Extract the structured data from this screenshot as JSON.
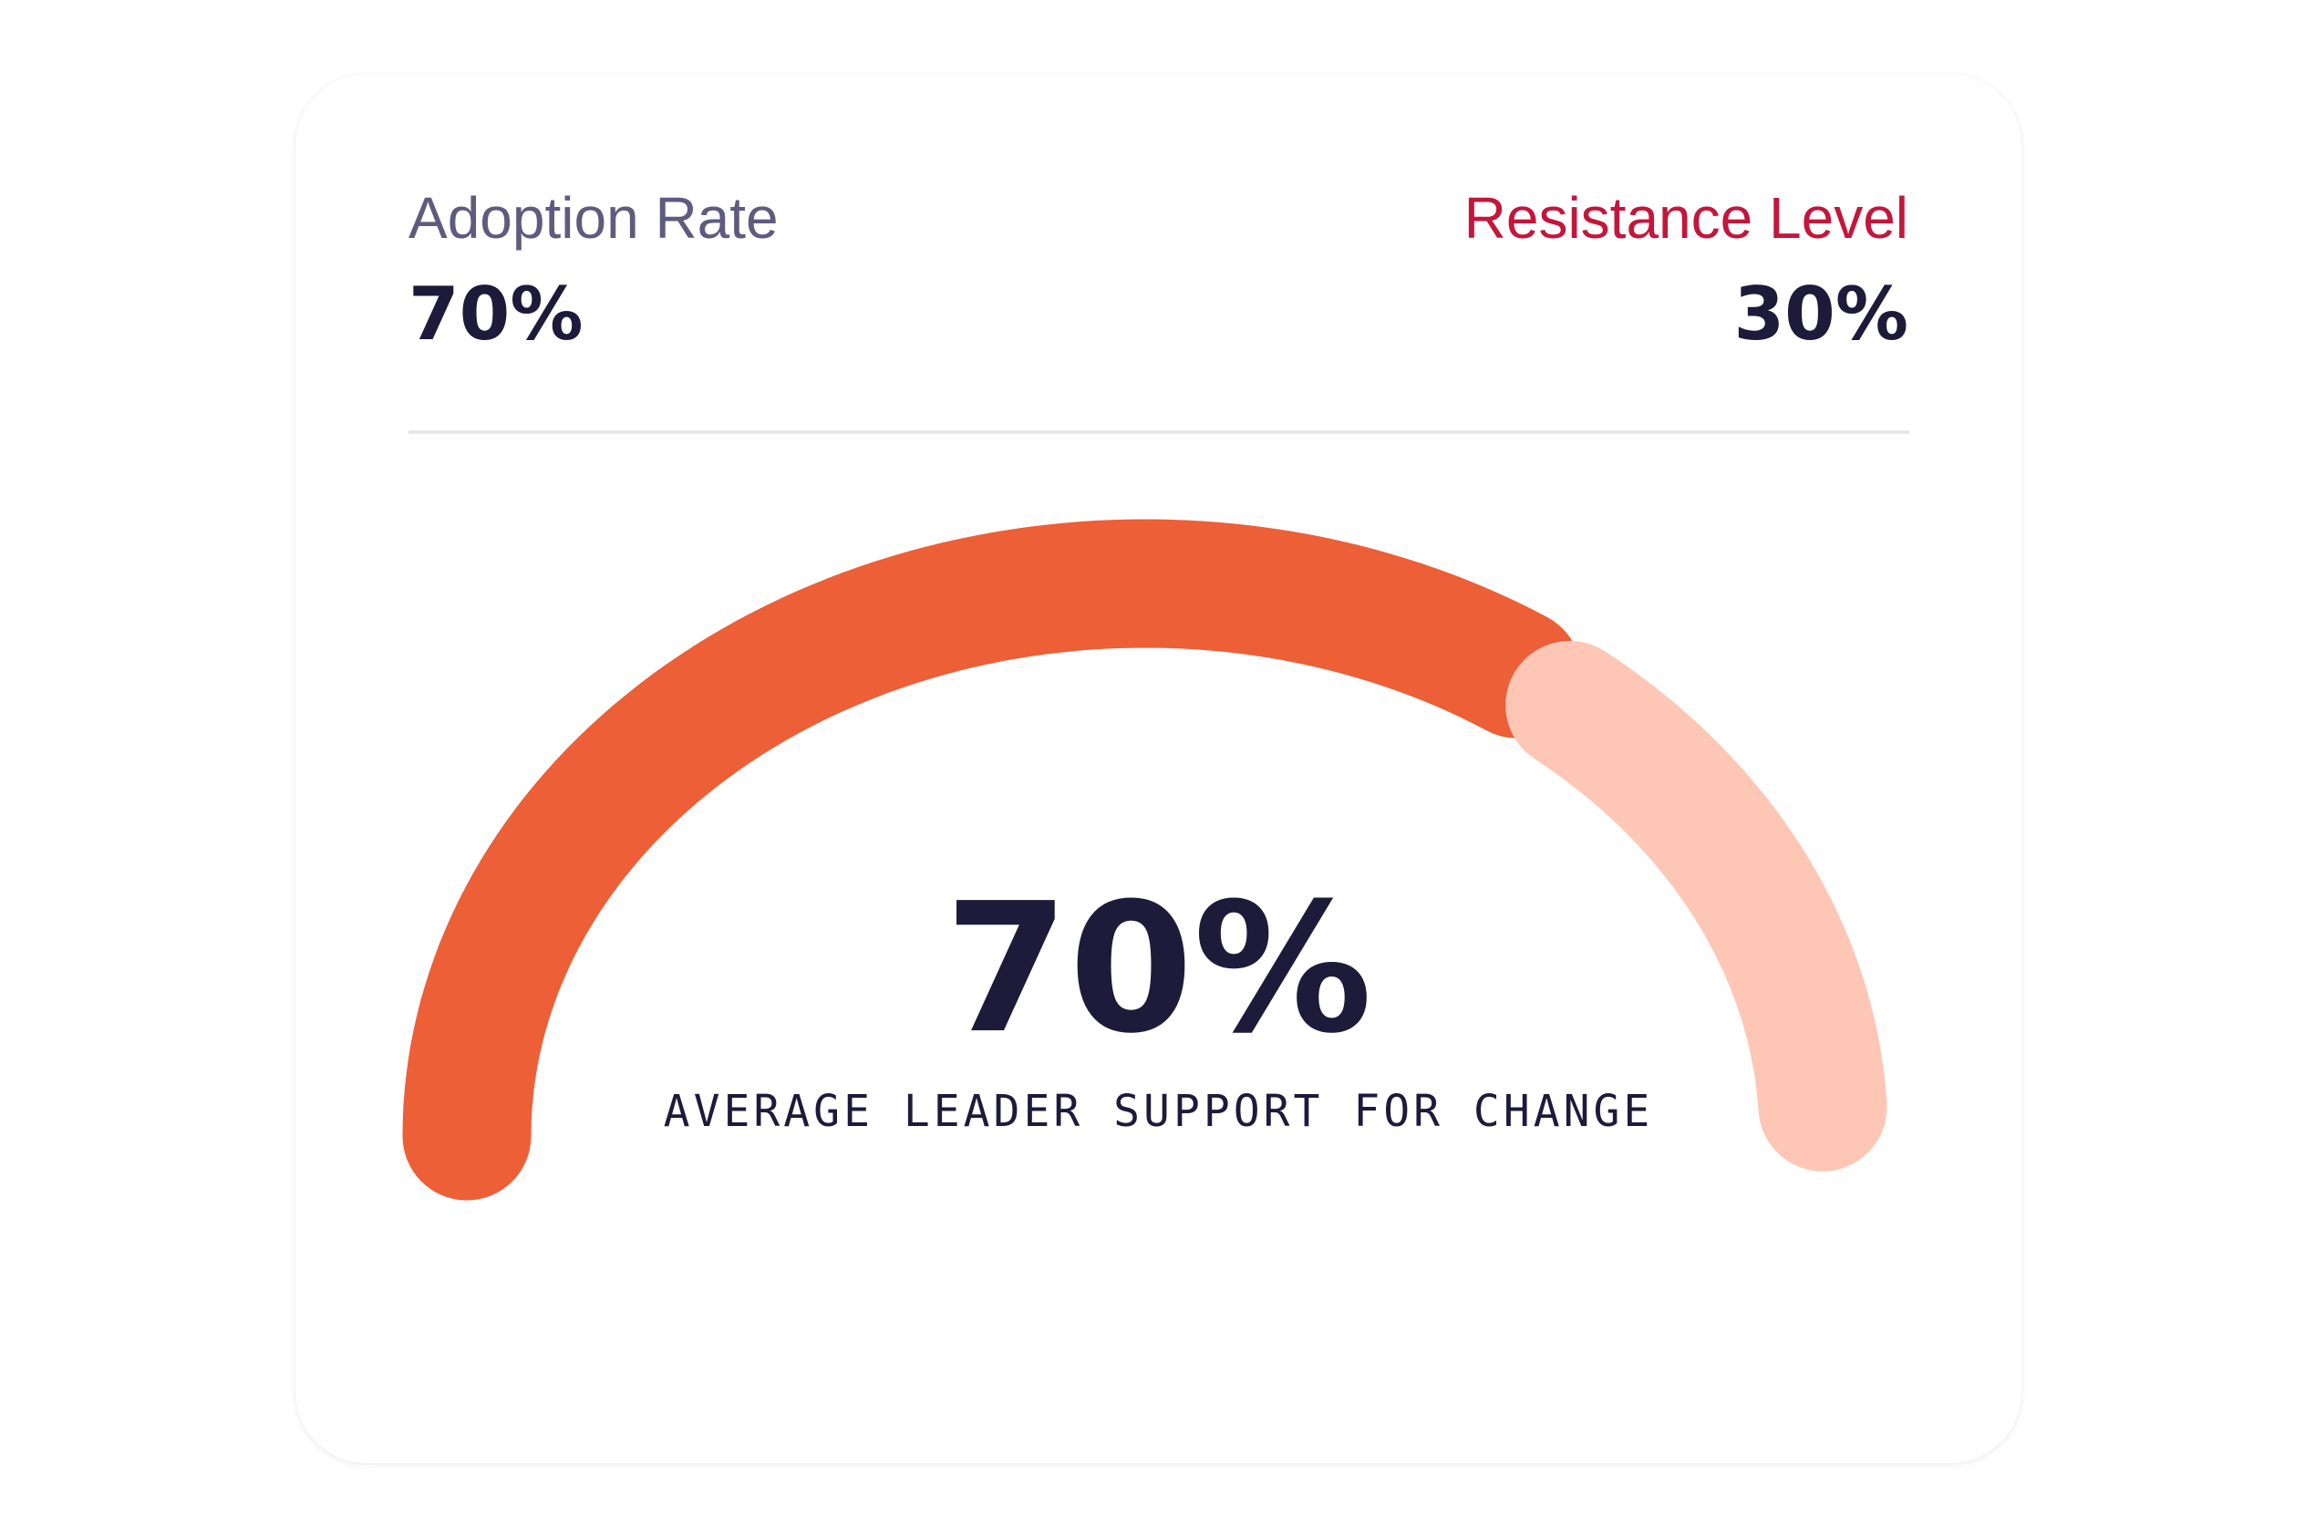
{
  "header": {
    "adoption": {
      "label": "Adoption Rate",
      "value": "70%"
    },
    "resistance": {
      "label": "Resistance Level",
      "value": "30%"
    }
  },
  "gauge": {
    "value_text": "70%",
    "caption": "AVERAGE LEADER SUPPORT FOR CHANGE",
    "fraction": 0.7
  },
  "colors": {
    "adoption_label": "#5f5b7f",
    "resistance_label": "#c4163c",
    "primary_arc": "#ec5f37",
    "secondary_arc": "#fec6b5",
    "value_text": "#1e1a3a"
  }
}
